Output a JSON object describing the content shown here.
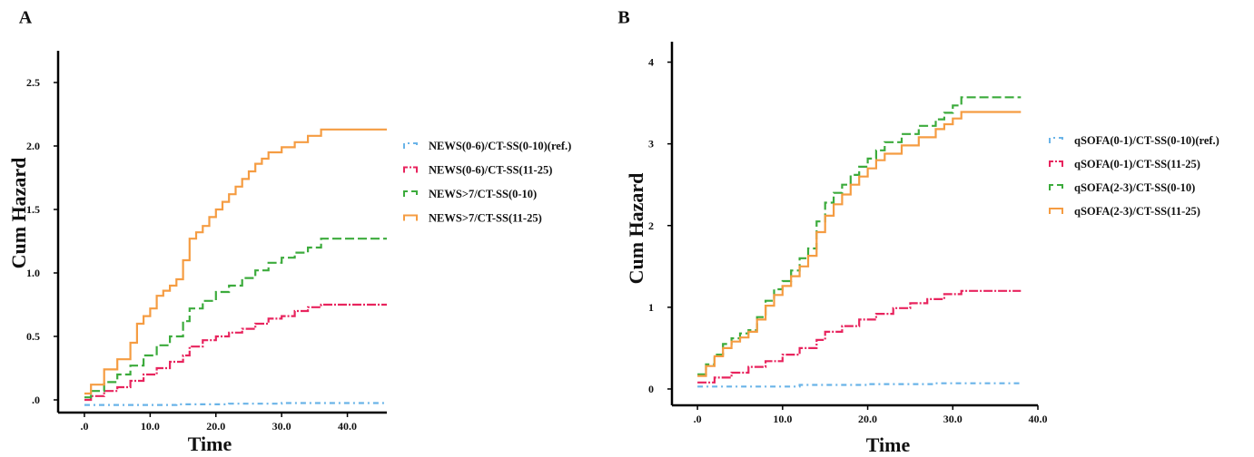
{
  "chart_data": [
    {
      "panel": "A",
      "type": "line",
      "step": true,
      "xlabel": "Time",
      "ylabel": "Cum Hazard",
      "xlim": [
        -4,
        46
      ],
      "ylim": [
        -0.1,
        2.75
      ],
      "xticks": [
        0,
        10,
        20,
        30,
        40
      ],
      "xtick_labels": [
        ".0",
        "10.0",
        "20.0",
        "30.0",
        "40.0"
      ],
      "yticks": [
        0,
        0.5,
        1.0,
        1.5,
        2.0,
        2.5
      ],
      "ytick_labels": [
        ".0",
        "0.5",
        "1.0",
        "1.5",
        "2.0",
        "2.5"
      ],
      "grid": false,
      "legend_position": "right",
      "series": [
        {
          "name": "NEWS(0-6)/CT-SS(0-10)(ref.)",
          "color": "#6ab4e8",
          "dash": "6,4,2,4",
          "points": [
            [
              0,
              -0.04
            ],
            [
              8,
              -0.04
            ],
            [
              14,
              -0.035
            ],
            [
              22,
              -0.03
            ],
            [
              30,
              -0.025
            ],
            [
              36,
              -0.025
            ],
            [
              46,
              -0.025
            ]
          ]
        },
        {
          "name": "NEWS(0-6)/CT-SS(11-25)",
          "color": "#e8245e",
          "dash": "10,2,2,2",
          "points": [
            [
              0,
              0
            ],
            [
              1,
              0.03
            ],
            [
              3,
              0.07
            ],
            [
              5,
              0.1
            ],
            [
              7,
              0.15
            ],
            [
              9,
              0.2
            ],
            [
              11,
              0.25
            ],
            [
              13,
              0.3
            ],
            [
              15,
              0.35
            ],
            [
              16,
              0.42
            ],
            [
              18,
              0.47
            ],
            [
              20,
              0.5
            ],
            [
              22,
              0.53
            ],
            [
              24,
              0.56
            ],
            [
              26,
              0.6
            ],
            [
              28,
              0.64
            ],
            [
              30,
              0.66
            ],
            [
              32,
              0.7
            ],
            [
              34,
              0.73
            ],
            [
              36,
              0.75
            ],
            [
              46,
              0.75
            ]
          ]
        },
        {
          "name": "NEWS>7/CT-SS(0-10)",
          "color": "#3cab3c",
          "dash": "10,4",
          "points": [
            [
              0,
              0.02
            ],
            [
              1,
              0.07
            ],
            [
              3,
              0.14
            ],
            [
              5,
              0.2
            ],
            [
              7,
              0.27
            ],
            [
              9,
              0.35
            ],
            [
              11,
              0.43
            ],
            [
              13,
              0.5
            ],
            [
              15,
              0.62
            ],
            [
              16,
              0.72
            ],
            [
              18,
              0.78
            ],
            [
              20,
              0.85
            ],
            [
              22,
              0.9
            ],
            [
              24,
              0.96
            ],
            [
              26,
              1.02
            ],
            [
              28,
              1.08
            ],
            [
              30,
              1.12
            ],
            [
              32,
              1.16
            ],
            [
              34,
              1.2
            ],
            [
              36,
              1.27
            ],
            [
              46,
              1.27
            ]
          ]
        },
        {
          "name": "NEWS>7/CT-SS(11-25)",
          "color": "#f59c42",
          "dash": "",
          "points": [
            [
              0,
              0.05
            ],
            [
              1,
              0.12
            ],
            [
              3,
              0.24
            ],
            [
              5,
              0.32
            ],
            [
              7,
              0.45
            ],
            [
              8,
              0.6
            ],
            [
              9,
              0.66
            ],
            [
              10,
              0.72
            ],
            [
              11,
              0.82
            ],
            [
              12,
              0.86
            ],
            [
              13,
              0.9
            ],
            [
              14,
              0.95
            ],
            [
              15,
              1.1
            ],
            [
              16,
              1.27
            ],
            [
              17,
              1.32
            ],
            [
              18,
              1.37
            ],
            [
              19,
              1.44
            ],
            [
              20,
              1.5
            ],
            [
              21,
              1.56
            ],
            [
              22,
              1.62
            ],
            [
              23,
              1.68
            ],
            [
              24,
              1.74
            ],
            [
              25,
              1.8
            ],
            [
              26,
              1.86
            ],
            [
              27,
              1.9
            ],
            [
              28,
              1.95
            ],
            [
              30,
              1.99
            ],
            [
              32,
              2.03
            ],
            [
              34,
              2.08
            ],
            [
              36,
              2.13
            ],
            [
              46,
              2.13
            ]
          ]
        }
      ]
    },
    {
      "panel": "B",
      "type": "line",
      "step": true,
      "xlabel": "Time",
      "ylabel": "Cum Hazard",
      "xlim": [
        -3,
        40
      ],
      "ylim": [
        -0.2,
        4.25
      ],
      "xticks": [
        0,
        10,
        20,
        30,
        40
      ],
      "xtick_labels": [
        ".0",
        "10.0",
        "20.0",
        "30.0",
        "40.0"
      ],
      "yticks": [
        0,
        1,
        2,
        3,
        4
      ],
      "ytick_labels": [
        "0",
        "1",
        "2",
        "3",
        "4"
      ],
      "grid": false,
      "legend_position": "right",
      "series": [
        {
          "name": "qSOFA(0-1)/CT-SS(0-10)(ref.)",
          "color": "#6ab4e8",
          "dash": "6,4,2,4",
          "points": [
            [
              0,
              0.03
            ],
            [
              6,
              0.03
            ],
            [
              12,
              0.05
            ],
            [
              20,
              0.06
            ],
            [
              28,
              0.07
            ],
            [
              38,
              0.07
            ]
          ]
        },
        {
          "name": "qSOFA(0-1)/CT-SS(11-25)",
          "color": "#e8245e",
          "dash": "10,2,2,2",
          "points": [
            [
              0,
              0.08
            ],
            [
              2,
              0.14
            ],
            [
              4,
              0.2
            ],
            [
              6,
              0.27
            ],
            [
              8,
              0.34
            ],
            [
              10,
              0.42
            ],
            [
              12,
              0.5
            ],
            [
              14,
              0.6
            ],
            [
              15,
              0.7
            ],
            [
              17,
              0.77
            ],
            [
              19,
              0.85
            ],
            [
              21,
              0.92
            ],
            [
              23,
              0.99
            ],
            [
              25,
              1.05
            ],
            [
              27,
              1.1
            ],
            [
              29,
              1.16
            ],
            [
              31,
              1.2
            ],
            [
              38,
              1.2
            ]
          ]
        },
        {
          "name": "qSOFA(2-3)/CT-SS(0-10)",
          "color": "#3cab3c",
          "dash": "10,4",
          "points": [
            [
              0,
              0.18
            ],
            [
              1,
              0.3
            ],
            [
              2,
              0.42
            ],
            [
              3,
              0.55
            ],
            [
              4,
              0.62
            ],
            [
              5,
              0.68
            ],
            [
              6,
              0.72
            ],
            [
              7,
              0.88
            ],
            [
              8,
              1.08
            ],
            [
              9,
              1.22
            ],
            [
              10,
              1.32
            ],
            [
              11,
              1.45
            ],
            [
              12,
              1.6
            ],
            [
              13,
              1.72
            ],
            [
              14,
              2.05
            ],
            [
              15,
              2.28
            ],
            [
              16,
              2.4
            ],
            [
              17,
              2.5
            ],
            [
              18,
              2.62
            ],
            [
              19,
              2.72
            ],
            [
              20,
              2.82
            ],
            [
              21,
              2.92
            ],
            [
              22,
              3.02
            ],
            [
              24,
              3.12
            ],
            [
              26,
              3.22
            ],
            [
              28,
              3.3
            ],
            [
              29,
              3.38
            ],
            [
              30,
              3.47
            ],
            [
              31,
              3.57
            ],
            [
              38,
              3.57
            ]
          ]
        },
        {
          "name": "qSOFA(2-3)/CT-SS(11-25)",
          "color": "#f59c42",
          "dash": "",
          "points": [
            [
              0,
              0.16
            ],
            [
              1,
              0.28
            ],
            [
              2,
              0.4
            ],
            [
              3,
              0.5
            ],
            [
              4,
              0.58
            ],
            [
              5,
              0.63
            ],
            [
              6,
              0.7
            ],
            [
              7,
              0.85
            ],
            [
              8,
              1.02
            ],
            [
              9,
              1.15
            ],
            [
              10,
              1.26
            ],
            [
              11,
              1.38
            ],
            [
              12,
              1.5
            ],
            [
              13,
              1.63
            ],
            [
              14,
              1.92
            ],
            [
              15,
              2.12
            ],
            [
              16,
              2.26
            ],
            [
              17,
              2.38
            ],
            [
              18,
              2.5
            ],
            [
              19,
              2.6
            ],
            [
              20,
              2.7
            ],
            [
              21,
              2.8
            ],
            [
              22,
              2.88
            ],
            [
              24,
              2.98
            ],
            [
              26,
              3.08
            ],
            [
              28,
              3.18
            ],
            [
              29,
              3.24
            ],
            [
              30,
              3.31
            ],
            [
              31,
              3.39
            ],
            [
              38,
              3.39
            ]
          ]
        }
      ]
    }
  ]
}
